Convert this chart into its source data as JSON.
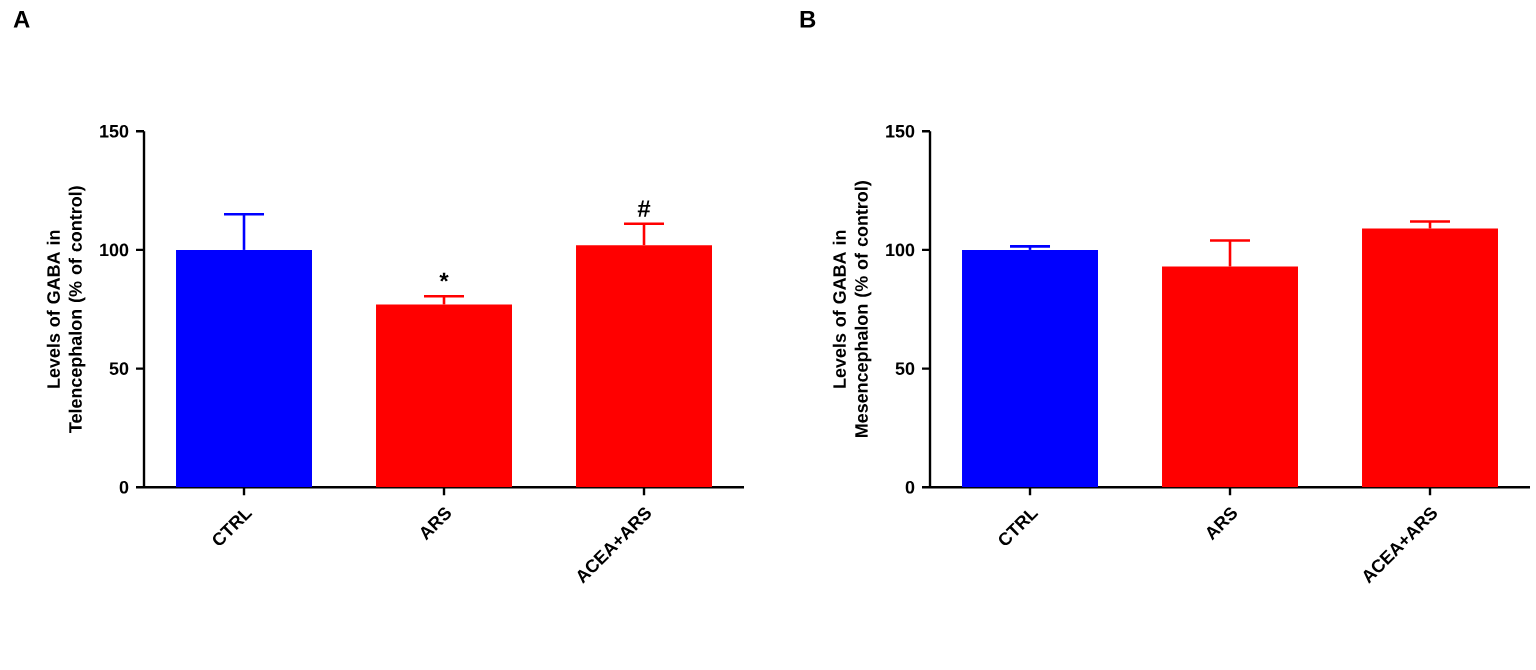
{
  "chart_data": [
    {
      "type": "bar",
      "title": "A",
      "ylabel": "Levels of GABA in Telencephalon (% of control)",
      "categories": [
        "CTRL",
        "ARS",
        "ACEA+ARS"
      ],
      "values": [
        100,
        77,
        102
      ],
      "colors": [
        "#0000ff",
        "#ff0000",
        "#ff0000"
      ],
      "errors": [
        [
          100,
          115
        ],
        [
          77,
          80.5
        ],
        [
          102,
          111
        ]
      ],
      "ylim": [
        0,
        150
      ],
      "yticks": [
        0,
        50,
        100,
        150
      ],
      "grid": false,
      "annotations": [
        "*",
        "#"
      ]
    },
    {
      "type": "bar",
      "title": "B",
      "ylabel": "Levels of GABA in Mesencephalon (% of control)",
      "categories": [
        "CTRL",
        "ARS",
        "ACEA+ARS"
      ],
      "values": [
        100,
        93,
        109
      ],
      "colors": [
        "#0000ff",
        "#ff0000",
        "#ff0000"
      ],
      "errors": [
        [
          100,
          101.5
        ],
        [
          93,
          104
        ],
        [
          109,
          112
        ]
      ],
      "ylim": [
        0,
        150
      ],
      "yticks": [
        0,
        50,
        100,
        150
      ],
      "grid": false
    }
  ]
}
